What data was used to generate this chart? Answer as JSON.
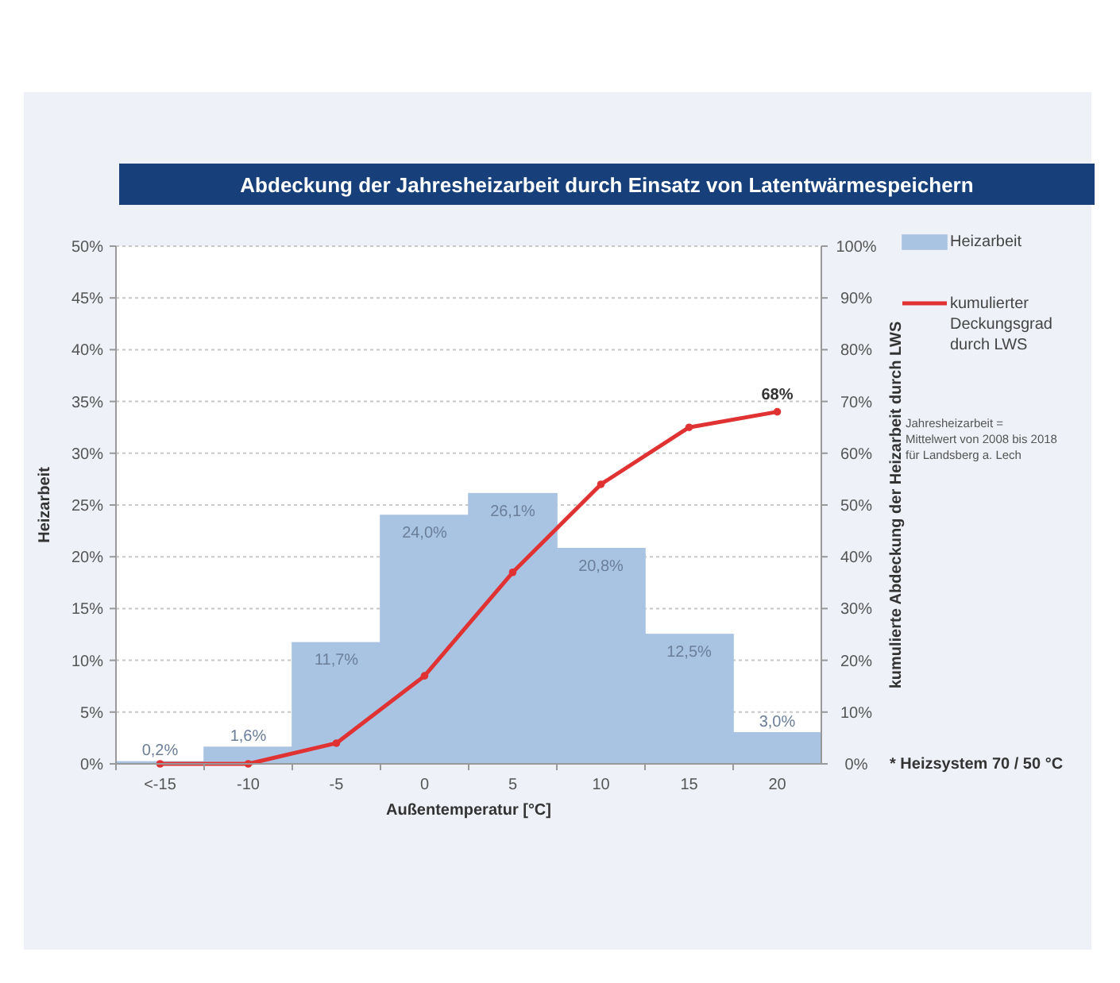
{
  "chart_data": {
    "type": "bar",
    "title": "Abdeckung der Jahresheizarbeit durch Einsatz von Latentwärmespeichern",
    "xlabel": "Außentemperatur [°C]",
    "ylabel": "Heizarbeit",
    "y2label": "kumulierte Abdeckung der Heizarbeit durch LWS",
    "categories": [
      "<-15",
      "-10",
      "-5",
      "0",
      "5",
      "10",
      "15",
      "20"
    ],
    "series": [
      {
        "name": "Heizarbeit",
        "color": "#a9c3e3",
        "values": [
          0.2,
          1.6,
          11.7,
          24.0,
          26.1,
          20.8,
          12.5,
          3.0
        ],
        "value_labels": [
          "0,2%",
          "1,6%",
          "11,7%",
          "24,0%",
          "26,1%",
          "20,8%",
          "12,5%",
          "3,0%"
        ]
      },
      {
        "name": "kumulierter Deckungsgrad durch LWS",
        "type": "line",
        "axis": "y2",
        "color": "#e03232",
        "values": [
          0,
          0,
          4,
          17,
          37,
          54,
          65,
          68
        ],
        "value_labels": [
          null,
          null,
          null,
          null,
          null,
          null,
          null,
          "68%"
        ]
      }
    ],
    "ylim": [
      0,
      50
    ],
    "yticks": [
      {
        "value": 0,
        "label": "0%"
      },
      {
        "value": 5,
        "label": "5%"
      },
      {
        "value": 10,
        "label": "10%"
      },
      {
        "value": 15,
        "label": "15%"
      },
      {
        "value": 20,
        "label": "20%"
      },
      {
        "value": 25,
        "label": "25%"
      },
      {
        "value": 30,
        "label": "30%"
      },
      {
        "value": 35,
        "label": "35%"
      },
      {
        "value": 40,
        "label": "40%"
      },
      {
        "value": 45,
        "label": "45%"
      },
      {
        "value": 50,
        "label": "50%"
      }
    ],
    "y2lim": [
      0,
      100
    ],
    "y2ticks": [
      {
        "value": 0,
        "label": "0%"
      },
      {
        "value": 10,
        "label": "10%"
      },
      {
        "value": 20,
        "label": "20%"
      },
      {
        "value": 30,
        "label": "30%"
      },
      {
        "value": 40,
        "label": "40%"
      },
      {
        "value": 50,
        "label": "50%"
      },
      {
        "value": 60,
        "label": "60%"
      },
      {
        "value": 70,
        "label": "70%"
      },
      {
        "value": 80,
        "label": "80%"
      },
      {
        "value": 90,
        "label": "90%"
      },
      {
        "value": 100,
        "label": "100%"
      }
    ],
    "grid": "y",
    "legend": "right",
    "marker": "circle",
    "line_style": "solid",
    "annotations": [
      "Jahresheizarbeit = Mittelwert von 2008 bis 2018 für Landsberg a. Lech",
      "* Heizsystem 70 / 50 °C"
    ]
  }
}
